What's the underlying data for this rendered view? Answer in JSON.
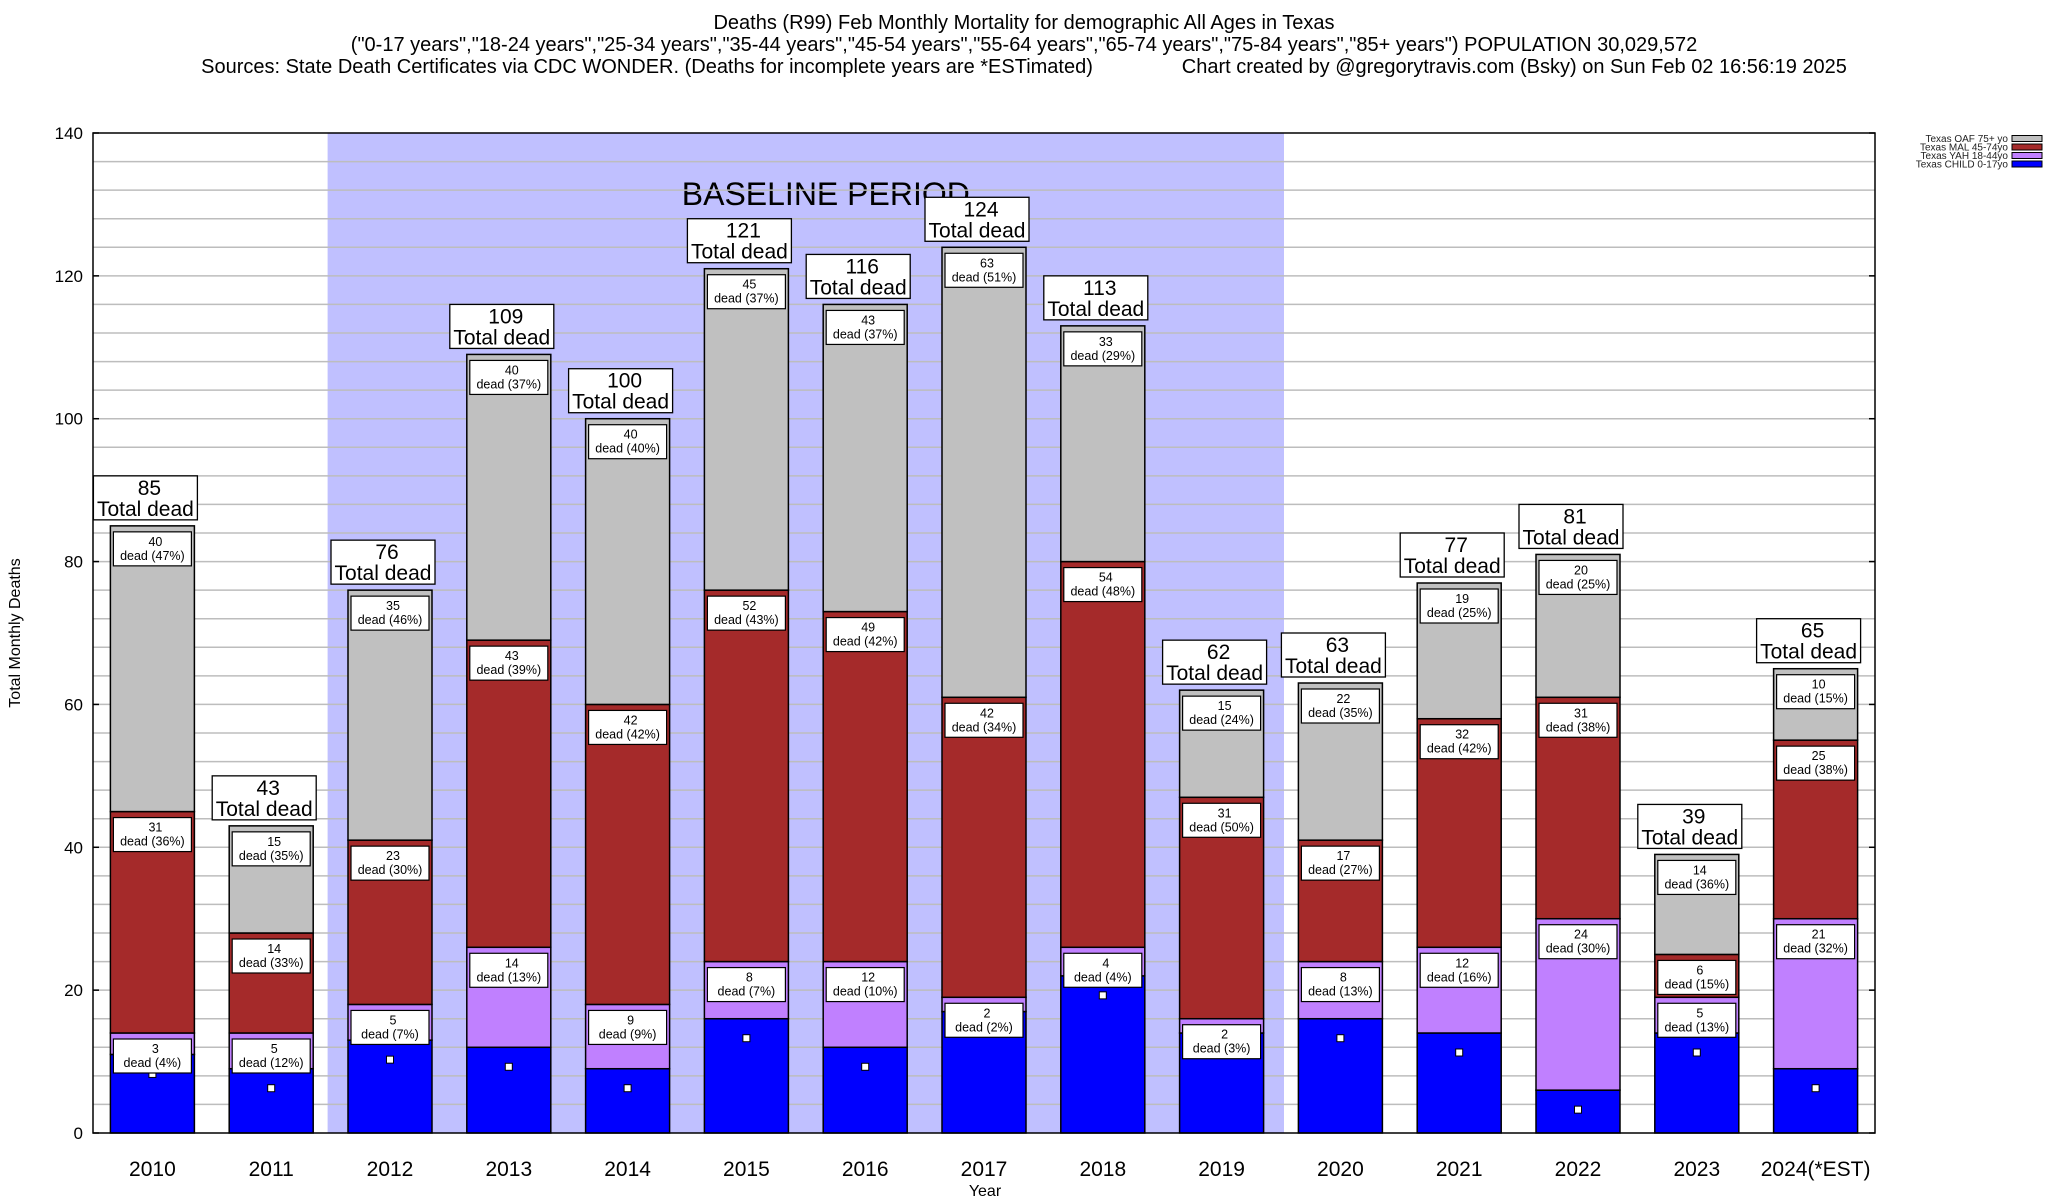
{
  "header": {
    "line1": "Deaths (R99) Feb Monthly Mortality for demographic All Ages in Texas",
    "line2": "(\"0-17 years\",\"18-24 years\",\"25-34 years\",\"35-44 years\",\"45-54 years\",\"55-64 years\",\"65-74 years\",\"75-84 years\",\"85+ years\") POPULATION 30,029,572",
    "line3": "Sources: State Death Certificates via CDC WONDER. (Deaths for incomplete years are *ESTimated)                Chart created by @gregorytravis.com (Bsky) on Sun Feb 02 16:56:19 2025"
  },
  "chart_data": {
    "type": "bar",
    "stacked": true,
    "title": "Deaths (R99) Feb Monthly Mortality for demographic All Ages in Texas",
    "xlabel": "Year",
    "ylabel": "Total Monthly Deaths",
    "ylim": [
      0,
      140
    ],
    "yticks": [
      0,
      20,
      40,
      60,
      80,
      100,
      120,
      140
    ],
    "minor_grid_step": 4,
    "grid": true,
    "legend_position": "top-right",
    "categories": [
      "2010",
      "2011",
      "2012",
      "2013",
      "2014",
      "2015",
      "2016",
      "2017",
      "2018",
      "2019",
      "2020",
      "2021",
      "2022",
      "2023",
      "2024(*EST)"
    ],
    "series": [
      {
        "name": "Texas CHILD 0-17yo",
        "color": "#0000ff",
        "values": [
          11,
          9,
          13,
          12,
          9,
          16,
          12,
          17,
          22,
          14,
          16,
          14,
          6,
          14,
          9
        ]
      },
      {
        "name": "Texas YAH 18-44yo",
        "color": "#c080ff",
        "values": [
          3,
          5,
          5,
          14,
          9,
          8,
          12,
          2,
          4,
          2,
          8,
          12,
          24,
          5,
          21
        ],
        "labels": [
          "dead (4%)",
          "dead (12%)",
          "dead (7%)",
          "dead (13%)",
          "dead (9%)",
          "dead (7%)",
          "dead (10%)",
          "dead (2%)",
          "dead (4%)",
          "dead (3%)",
          "dead (13%)",
          "dead (16%)",
          "dead (30%)",
          "dead (13%)",
          "dead (32%)"
        ]
      },
      {
        "name": "Texas MAL 45-74yo",
        "color": "#a52a2a",
        "values": [
          31,
          14,
          23,
          43,
          42,
          52,
          49,
          42,
          54,
          31,
          17,
          32,
          31,
          6,
          25
        ],
        "labels": [
          "dead (36%)",
          "dead (33%)",
          "dead (30%)",
          "dead (39%)",
          "dead (42%)",
          "dead (43%)",
          "dead (42%)",
          "dead (34%)",
          "dead (48%)",
          "dead (50%)",
          "dead (27%)",
          "dead (42%)",
          "dead (38%)",
          "dead (15%)",
          "dead (38%)"
        ]
      },
      {
        "name": "Texas OAF 75+ yo",
        "color": "#c0c0c0",
        "values": [
          40,
          15,
          35,
          40,
          40,
          45,
          43,
          63,
          33,
          15,
          22,
          19,
          20,
          14,
          10
        ],
        "labels": [
          "dead (47%)",
          "dead (35%)",
          "dead (46%)",
          "dead (37%)",
          "dead (40%)",
          "dead (37%)",
          "dead (37%)",
          "dead (51%)",
          "dead (29%)",
          "dead (24%)",
          "dead (35%)",
          "dead (25%)",
          "dead (25%)",
          "dead (36%)",
          "dead (15%)"
        ]
      }
    ],
    "totals": [
      85,
      43,
      76,
      109,
      100,
      121,
      116,
      124,
      113,
      62,
      63,
      77,
      81,
      39,
      65
    ],
    "total_label": "Total dead",
    "baseline_period": {
      "label": "BASELINE PERIOD",
      "from": "2012",
      "to": "2019",
      "color": "#c0c0ff"
    },
    "legend_order": [
      "Texas OAF 75+ yo",
      "Texas MAL 45-74yo",
      "Texas YAH 18-44yo",
      "Texas CHILD 0-17yo"
    ]
  }
}
